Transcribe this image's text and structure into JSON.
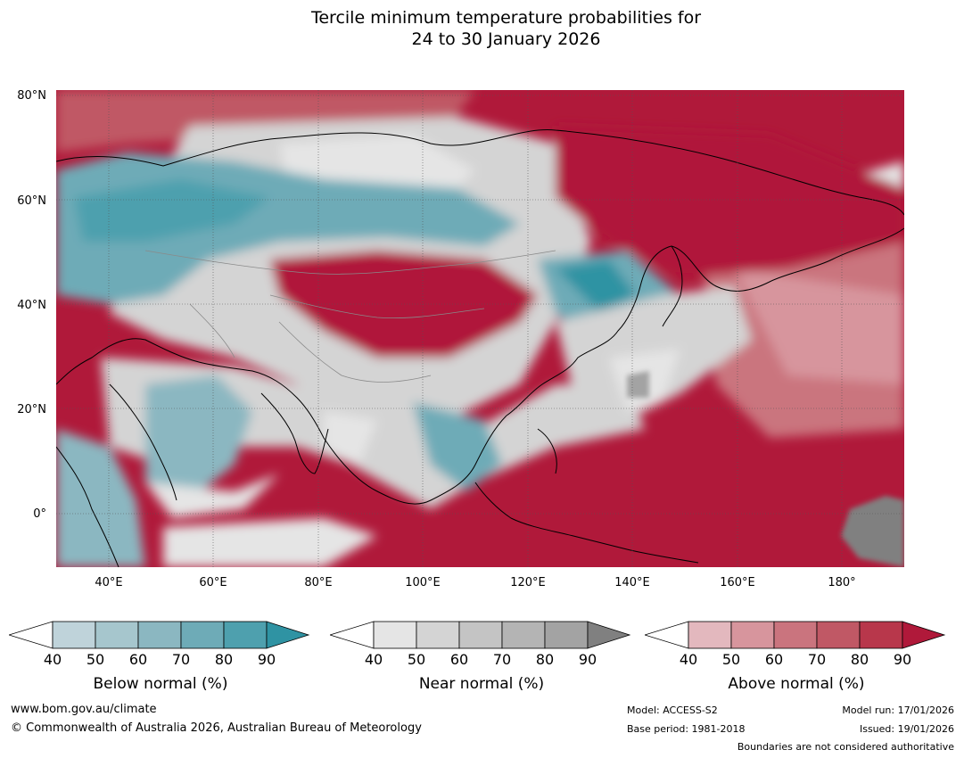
{
  "title_line1": "Tercile minimum temperature probabilities for",
  "title_line2": "24 to 30 January 2026",
  "map": {
    "lat_labels": [
      "80°N",
      "60°N",
      "40°N",
      "20°N",
      "0°"
    ],
    "lon_labels": [
      "40°E",
      "60°E",
      "80°E",
      "100°E",
      "120°E",
      "140°E",
      "160°E",
      "180°"
    ],
    "lon_range": [
      30,
      192
    ],
    "lat_range": [
      -10,
      81
    ]
  },
  "legends": {
    "below": {
      "label": "Below normal (%)",
      "ticks": [
        "40",
        "50",
        "60",
        "70",
        "80",
        "90"
      ],
      "colors": [
        "#ffffff",
        "#bfd3da",
        "#a6c6cd",
        "#8bb7c1",
        "#6eabb7",
        "#4ea0ae",
        "#2f93a3"
      ]
    },
    "near": {
      "label": "Near normal (%)",
      "ticks": [
        "40",
        "50",
        "60",
        "70",
        "80",
        "90"
      ],
      "colors": [
        "#ffffff",
        "#e5e5e5",
        "#d4d4d4",
        "#c4c4c4",
        "#b4b4b4",
        "#a3a3a3",
        "#808080"
      ]
    },
    "above": {
      "label": "Above normal (%)",
      "ticks": [
        "40",
        "50",
        "60",
        "70",
        "80",
        "90"
      ],
      "colors": [
        "#ffffff",
        "#e3b8be",
        "#d7959d",
        "#ca747e",
        "#c05865",
        "#b8374b",
        "#b0193a"
      ]
    }
  },
  "footer": {
    "website": "www.bom.gov.au/climate",
    "copyright": "© Commonwealth of Australia 2026, Australian Bureau of Meteorology",
    "model": "Model: ACCESS-S2",
    "base_period": "Base period: 1981-2018",
    "model_run": "Model run: 17/01/2026",
    "issued": "Issued: 19/01/2026",
    "disclaimer": "Boundaries are not considered authoritative"
  },
  "colors": {
    "ocean_above": "#b0193a",
    "gray": "#d4d4d4",
    "teal": "#6eabb7",
    "pink": "#ca747e"
  }
}
